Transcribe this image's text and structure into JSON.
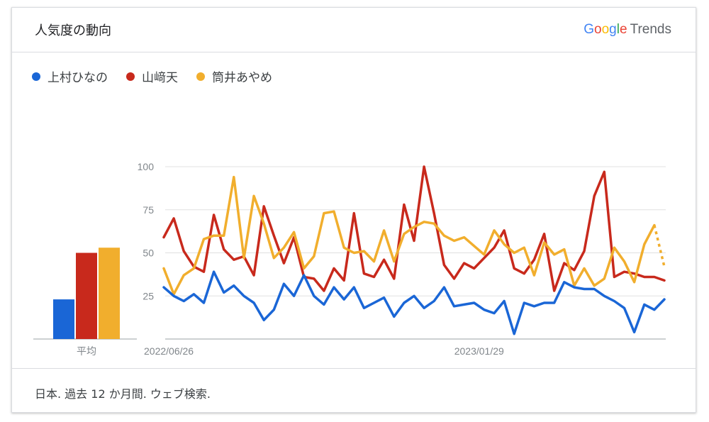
{
  "header": {
    "title": "人気度の動向",
    "brand": {
      "google": "Google",
      "product": "Trends"
    }
  },
  "footer": {
    "text": "日本. 過去 12 か月間. ウェブ検索."
  },
  "colors": {
    "blue": "#1a66d6",
    "red": "#c8291c",
    "yellow": "#f1ae2d"
  },
  "chart_data": {
    "type": "line",
    "ylim": [
      0,
      100
    ],
    "yticks": [
      25,
      50,
      75,
      100
    ],
    "x_tick_labels": [
      {
        "label": "2022/06/26",
        "index": 0
      },
      {
        "label": "2023/01/29",
        "index": 31
      }
    ],
    "average_label": "平均",
    "series": [
      {
        "name": "上村ひなの",
        "color": "#1a66d6",
        "average": 23,
        "values": [
          30,
          25,
          22,
          26,
          21,
          39,
          27,
          31,
          25,
          21,
          11,
          17,
          32,
          25,
          37,
          25,
          20,
          30,
          23,
          30,
          18,
          21,
          24,
          13,
          21,
          25,
          18,
          22,
          30,
          19,
          20,
          21,
          17,
          15,
          22,
          3,
          21,
          19,
          21,
          21,
          33,
          30,
          29,
          29,
          25,
          22,
          18,
          4,
          20,
          17,
          23
        ],
        "partial_from": null
      },
      {
        "name": "山﨑天",
        "color": "#c8291c",
        "average": 50,
        "values": [
          59,
          70,
          51,
          42,
          39,
          72,
          52,
          46,
          48,
          37,
          77,
          60,
          44,
          59,
          36,
          35,
          28,
          41,
          34,
          73,
          38,
          36,
          46,
          35,
          78,
          57,
          100,
          73,
          43,
          35,
          44,
          41,
          47,
          53,
          63,
          41,
          38,
          46,
          61,
          28,
          44,
          40,
          51,
          83,
          97,
          36,
          39,
          38,
          36,
          36,
          34
        ],
        "partial_from": null
      },
      {
        "name": "筒井あやめ",
        "color": "#f1ae2d",
        "average": 53,
        "values": [
          41,
          26,
          37,
          41,
          58,
          60,
          60,
          94,
          47,
          83,
          67,
          47,
          53,
          62,
          41,
          48,
          73,
          74,
          53,
          50,
          51,
          45,
          63,
          45,
          61,
          65,
          68,
          67,
          60,
          57,
          59,
          54,
          49,
          63,
          55,
          50,
          53,
          37,
          56,
          49,
          52,
          31,
          41,
          31,
          35,
          53,
          45,
          33,
          55,
          66,
          42
        ],
        "partial_from": 49
      }
    ]
  }
}
